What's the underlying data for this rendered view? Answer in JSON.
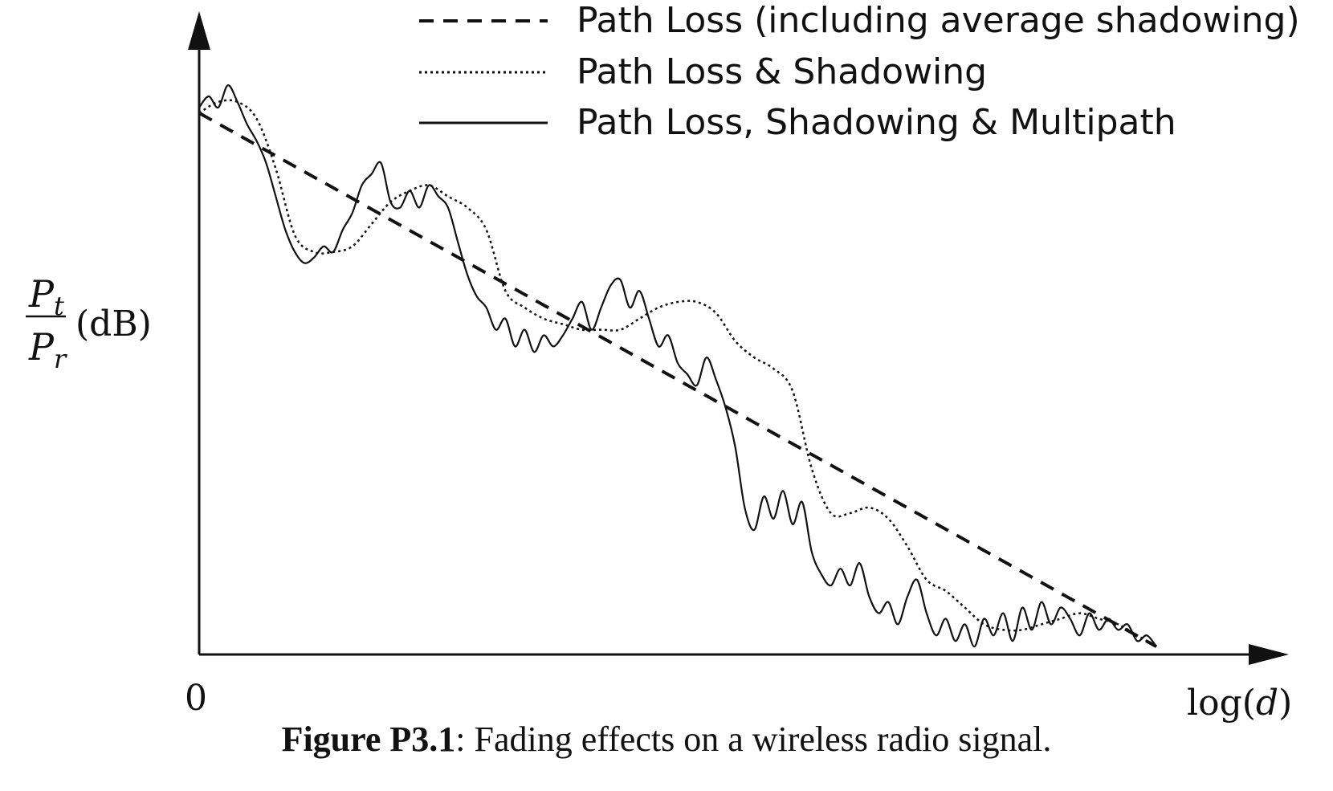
{
  "chart_data": {
    "type": "line",
    "title": "",
    "ylabel": {
      "numerator": "P",
      "numerator_sub": "t",
      "denominator": "P",
      "denominator_sub": "r",
      "unit": "(dB)"
    },
    "xlabel": {
      "prefix": "log(",
      "var": "d",
      "suffix": ")"
    },
    "origin_label": "0",
    "xlim": [
      0,
      100
    ],
    "ylim": [
      0,
      100
    ],
    "grid": false,
    "legend_position": "top-right",
    "series": [
      {
        "name": "Path Loss (including average shadowing)",
        "style": "dashed",
        "x": [
          0,
          100
        ],
        "y": [
          97,
          1
        ]
      },
      {
        "name": "Path Loss & Shadowing",
        "style": "dotted",
        "x": [
          0,
          2,
          4,
          6,
          8,
          10,
          12,
          14,
          16,
          18,
          20,
          22,
          24,
          26,
          28,
          30,
          32,
          34,
          36,
          38,
          40,
          42,
          44,
          46,
          48,
          50,
          52,
          54,
          56,
          58,
          60,
          62,
          64,
          66,
          68,
          70,
          72,
          74,
          76,
          78,
          80,
          82,
          84,
          86,
          88,
          90,
          92,
          94,
          96,
          98,
          100
        ],
        "y": [
          97,
          99,
          99,
          96,
          87,
          75,
          72,
          72,
          73,
          77,
          81,
          83,
          84,
          82,
          80,
          76,
          65,
          62,
          60,
          59,
          58,
          58,
          58,
          60,
          62,
          63,
          63,
          61,
          56,
          53,
          51,
          47,
          33,
          25,
          25,
          26,
          24,
          19,
          13,
          11,
          8,
          5,
          4,
          4,
          5,
          6,
          7,
          6,
          5,
          3,
          1
        ]
      },
      {
        "name": "Path Loss, Shadowing & Multipath",
        "style": "solid",
        "x": [
          0,
          1,
          2,
          3,
          4,
          5,
          6,
          7,
          8,
          9,
          10,
          11,
          12,
          13,
          14,
          15,
          16,
          17,
          18,
          19,
          20,
          21,
          22,
          23,
          24,
          25,
          26,
          27,
          28,
          29,
          30,
          31,
          32,
          33,
          34,
          35,
          36,
          37,
          38,
          39,
          40,
          41,
          42,
          43,
          44,
          45,
          46,
          47,
          48,
          49,
          50,
          51,
          52,
          53,
          54,
          55,
          56,
          57,
          58,
          59,
          60,
          61,
          62,
          63,
          64,
          65,
          66,
          67,
          68,
          69,
          70,
          71,
          72,
          73,
          74,
          75,
          76,
          77,
          78,
          79,
          80,
          81,
          82,
          83,
          84,
          85,
          86,
          87,
          88,
          89,
          90,
          91,
          92,
          93,
          94,
          95,
          96,
          97,
          98,
          99,
          100
        ],
        "y": [
          98,
          100,
          98,
          102,
          99,
          95,
          92,
          88,
          82,
          76,
          72,
          70,
          71,
          73,
          72,
          76,
          79,
          84,
          86,
          88,
          81,
          80,
          83,
          80,
          84,
          82,
          80,
          74,
          68,
          64,
          62,
          58,
          60,
          55,
          58,
          54,
          57,
          55,
          57,
          60,
          63,
          58,
          62,
          66,
          67,
          62,
          65,
          60,
          55,
          57,
          52,
          50,
          48,
          53,
          49,
          44,
          37,
          26,
          22,
          28,
          24,
          29,
          23,
          27,
          18,
          14,
          12,
          15,
          12,
          16,
          10,
          7,
          9,
          5,
          10,
          13,
          7,
          3,
          6,
          2,
          5,
          1,
          6,
          3,
          7,
          2,
          8,
          4,
          9,
          5,
          8,
          6,
          3,
          7,
          4,
          6,
          4,
          5,
          2,
          3,
          1
        ]
      }
    ]
  },
  "caption": {
    "label": "Figure P3.1",
    "text": ": Fading effects on a wireless radio signal."
  }
}
